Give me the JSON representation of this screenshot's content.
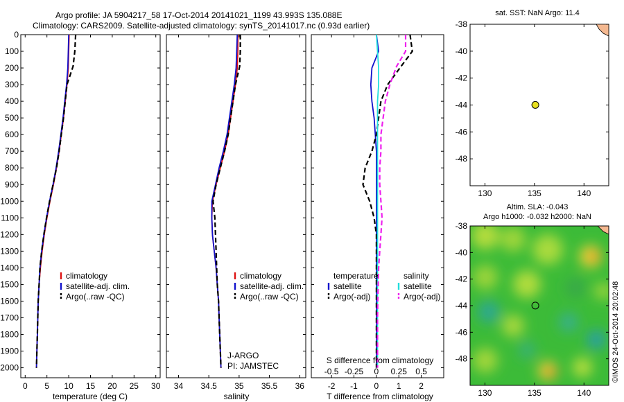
{
  "header": {
    "title_line1": "Argo profile: JA 5904217_58 17-Oct-2014 20141021_1199 43.993S 135.088E",
    "title_line2": "Climatology: CARS2009. Satellite-adjusted climatology: synTS_20141017.nc (0.93d earlier)"
  },
  "colors": {
    "climatology": "#dd1111",
    "satellite": "#1111cc",
    "argo": "#000000",
    "satellite_salinity": "#22dddd",
    "argo_salinity_adj": "#ee22ee",
    "land": "#f4b890",
    "marker": "#e8e020"
  },
  "chart_data": [
    {
      "type": "line",
      "id": "temperature-panel",
      "xlabel": "temperature (deg C)",
      "ylabel": "",
      "xlim": [
        -1,
        31
      ],
      "ylim": [
        2060,
        0
      ],
      "xticks": [
        0,
        5,
        10,
        15,
        20,
        25,
        30
      ],
      "yticks": [
        0,
        100,
        200,
        300,
        400,
        500,
        600,
        700,
        800,
        900,
        1000,
        1100,
        1200,
        1300,
        1400,
        1500,
        1600,
        1700,
        1800,
        1900,
        2000
      ],
      "legend": {
        "position": "bottom-right",
        "entries": [
          "climatology",
          "satellite-adj. clim.",
          "Argo(..raw -QC)"
        ]
      },
      "series": [
        {
          "name": "climatology",
          "color": "#dd1111",
          "dash": "solid",
          "x": [
            10.1,
            10.0,
            9.9,
            9.6,
            9.2,
            8.8,
            8.3,
            7.8,
            7.2,
            6.5,
            5.7,
            5.0,
            4.4,
            3.9,
            3.5,
            3.2,
            3.0,
            2.9,
            2.8,
            2.7,
            2.6
          ],
          "y": [
            0,
            100,
            200,
            300,
            400,
            500,
            600,
            700,
            800,
            900,
            1000,
            1100,
            1200,
            1300,
            1400,
            1500,
            1600,
            1700,
            1800,
            1900,
            2000
          ]
        },
        {
          "name": "satellite-adj. clim.",
          "color": "#1111cc",
          "dash": "solid",
          "x": [
            10.0,
            9.9,
            9.8,
            9.5,
            9.1,
            8.7,
            8.2,
            7.7,
            7.1,
            6.4,
            5.6,
            4.9,
            4.3,
            3.8,
            3.4,
            3.2,
            3.0,
            2.9,
            2.8,
            2.7,
            2.6
          ],
          "y": [
            0,
            100,
            200,
            300,
            400,
            500,
            600,
            700,
            800,
            900,
            1000,
            1100,
            1200,
            1300,
            1400,
            1500,
            1600,
            1700,
            1800,
            1900,
            2000
          ]
        },
        {
          "name": "Argo(..raw -QC)",
          "color": "#000000",
          "dash": "dashed",
          "x": [
            11.6,
            11.4,
            11.0,
            9.6,
            9.2,
            8.8,
            8.3,
            7.8,
            7.2,
            6.4,
            5.6,
            4.9,
            4.3,
            3.8,
            3.4,
            3.2,
            3.0,
            2.9,
            2.8,
            2.7,
            2.6
          ],
          "y": [
            0,
            100,
            190,
            300,
            400,
            500,
            600,
            700,
            800,
            900,
            1000,
            1100,
            1200,
            1300,
            1400,
            1500,
            1600,
            1700,
            1800,
            1900,
            2000
          ]
        }
      ]
    },
    {
      "type": "line",
      "id": "salinity-panel",
      "xlabel": "salinity",
      "ylabel": "",
      "xlim": [
        33.8,
        36.1
      ],
      "ylim": [
        2060,
        0
      ],
      "xticks": [
        34,
        34.5,
        35,
        35.5,
        36
      ],
      "xticklabels": [
        "34",
        "34.5",
        "35",
        "35.5",
        "36"
      ],
      "legend": {
        "position": "bottom-right",
        "entries": [
          "climatology",
          "satellite-adj. clim.",
          "Argo(..raw -QC)"
        ]
      },
      "annotations": [
        "J-ARGO",
        "PI: JAMSTEC"
      ],
      "series": [
        {
          "name": "climatology",
          "color": "#dd1111",
          "dash": "solid",
          "x": [
            34.98,
            34.98,
            34.97,
            34.94,
            34.9,
            34.86,
            34.82,
            34.76,
            34.69,
            34.62,
            34.56,
            34.55,
            34.56,
            34.59,
            34.62,
            34.64,
            34.66,
            34.67,
            34.68,
            34.69,
            34.7
          ],
          "y": [
            0,
            100,
            200,
            300,
            400,
            500,
            600,
            700,
            800,
            900,
            1000,
            1100,
            1200,
            1300,
            1400,
            1500,
            1600,
            1700,
            1800,
            1900,
            2000
          ]
        },
        {
          "name": "satellite-adj. clim.",
          "color": "#1111cc",
          "dash": "solid",
          "x": [
            34.97,
            34.96,
            34.95,
            34.92,
            34.88,
            34.84,
            34.8,
            34.74,
            34.67,
            34.61,
            34.55,
            34.55,
            34.56,
            34.59,
            34.62,
            34.64,
            34.66,
            34.67,
            34.68,
            34.69,
            34.7
          ],
          "y": [
            0,
            100,
            200,
            300,
            400,
            500,
            600,
            700,
            800,
            900,
            1000,
            1100,
            1200,
            1300,
            1400,
            1500,
            1600,
            1700,
            1800,
            1900,
            2000
          ]
        },
        {
          "name": "Argo(..raw -QC)",
          "color": "#000000",
          "dash": "dashed",
          "x": [
            35.02,
            35.02,
            35.01,
            34.94,
            34.9,
            34.86,
            34.82,
            34.76,
            34.69,
            34.62,
            34.57,
            34.6,
            34.61,
            34.62,
            34.63,
            34.64,
            34.66,
            34.67,
            34.68,
            34.69,
            34.7
          ],
          "y": [
            0,
            100,
            190,
            300,
            400,
            500,
            600,
            700,
            800,
            900,
            1000,
            1100,
            1200,
            1300,
            1400,
            1500,
            1600,
            1700,
            1800,
            1900,
            2000
          ]
        }
      ]
    },
    {
      "type": "line",
      "id": "difference-panel",
      "xlabel": "T difference from climatology",
      "xlabel_top": "S difference from climatology",
      "xlim": [
        -2.9,
        3.0
      ],
      "ylim": [
        2060,
        0
      ],
      "xticks": [
        -2,
        -1,
        0,
        1,
        2
      ],
      "xticklabels": [
        "-2",
        "-1",
        "0",
        "1",
        "2"
      ],
      "sticks": [
        -0.5,
        -0.25,
        0,
        0.25,
        0.5
      ],
      "sticklabels": [
        "-0.5",
        "-0.25",
        "0",
        "0.25",
        "0.5"
      ],
      "legend": {
        "position": "bottom",
        "headers": [
          "temperature",
          "salinity"
        ],
        "entries": [
          "satellite",
          "Argo(-adj)",
          "satellite",
          "Argo(-adj)"
        ]
      },
      "series": [
        {
          "name": "satellite",
          "group": "temperature",
          "color": "#1111cc",
          "dash": "solid",
          "x": [
            0.0,
            0.1,
            -0.2,
            -0.25,
            -0.2,
            -0.1,
            -0.05,
            0.0,
            0.0,
            0.0,
            0.0,
            0.0,
            0.0,
            0.0,
            0.0,
            0.0,
            0.0,
            0.0,
            0.0,
            0.0,
            0.0
          ],
          "y": [
            0,
            100,
            200,
            300,
            400,
            500,
            600,
            700,
            800,
            900,
            1000,
            1100,
            1200,
            1300,
            1400,
            1500,
            1600,
            1700,
            1800,
            1900,
            2000
          ]
        },
        {
          "name": "Argo(-adj)",
          "group": "temperature",
          "color": "#000000",
          "dash": "dashed",
          "x": [
            1.5,
            1.6,
            1.1,
            0.5,
            0.2,
            0.1,
            0.0,
            -0.2,
            -0.5,
            -0.6,
            -0.3,
            -0.1,
            0.0,
            0.0,
            0.0,
            0.0,
            0.0,
            0.0,
            0.0,
            0.0,
            0.0
          ],
          "y": [
            0,
            100,
            190,
            300,
            400,
            500,
            600,
            700,
            800,
            900,
            1000,
            1100,
            1200,
            1300,
            1400,
            1500,
            1600,
            1700,
            1800,
            1900,
            2000
          ]
        },
        {
          "name": "satellite",
          "group": "salinity",
          "color": "#22dddd",
          "dash": "solid",
          "x": [
            0.0,
            0.05,
            0.1,
            0.1,
            0.05,
            0.05,
            0.05,
            0.05,
            0.05,
            0.05,
            0.05,
            0.05,
            0.05,
            0.05,
            0.05,
            0.05,
            0.05,
            0.05,
            0.05,
            0.05,
            0.05
          ],
          "y": [
            0,
            100,
            200,
            300,
            400,
            500,
            600,
            700,
            800,
            900,
            1000,
            1100,
            1200,
            1300,
            1400,
            1500,
            1600,
            1700,
            1800,
            1900,
            2000
          ]
        },
        {
          "name": "Argo(-adj)",
          "group": "salinity",
          "color": "#ee22ee",
          "dash": "dashed",
          "x": [
            1.3,
            1.3,
            0.9,
            0.6,
            0.4,
            0.3,
            0.2,
            0.2,
            0.15,
            0.15,
            0.2,
            0.25,
            0.2,
            0.15,
            0.1,
            0.08,
            0.06,
            0.05,
            0.05,
            0.05,
            0.05
          ],
          "y": [
            0,
            100,
            190,
            300,
            400,
            500,
            600,
            700,
            800,
            900,
            1000,
            1100,
            1200,
            1300,
            1400,
            1500,
            1600,
            1700,
            1800,
            1900,
            2000
          ]
        }
      ]
    },
    {
      "type": "scatter",
      "id": "sst-map",
      "title": "sat. SST: NaN Argo: 11.4",
      "xlim": [
        128.5,
        142.5
      ],
      "ylim": [
        -50,
        -38
      ],
      "xticks": [
        130,
        135,
        140
      ],
      "yticks": [
        -40,
        -42,
        -44,
        -46,
        -48
      ],
      "points": [
        {
          "x": 135.088,
          "y": -43.993
        }
      ]
    },
    {
      "type": "heatmap",
      "id": "sla-map",
      "title": "Altim. SLA: -0.043",
      "subtitle": "Argo h1000: -0.032 h2000: NaN",
      "xlim": [
        128.5,
        142.5
      ],
      "ylim": [
        -50,
        -38
      ],
      "xticks": [
        130,
        135,
        140
      ],
      "yticks": [
        -40,
        -42,
        -44,
        -46,
        -48
      ],
      "points": [
        {
          "x": 135.088,
          "y": -43.993
        }
      ]
    }
  ],
  "footer": {
    "vertical_text": "©IMOS 24-Oct-2014 20:02:48"
  }
}
